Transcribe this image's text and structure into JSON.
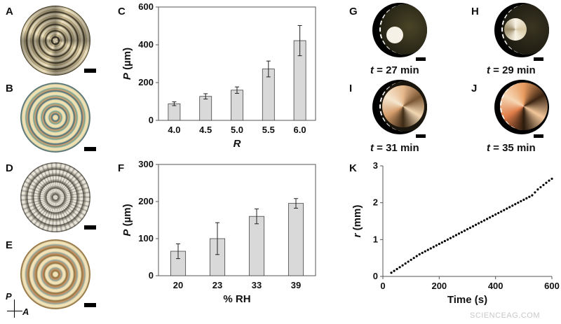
{
  "panel_letters": {
    "A": "A",
    "B": "B",
    "C": "C",
    "D": "D",
    "E": "E",
    "F": "F",
    "G": "G",
    "H": "H",
    "I": "I",
    "J": "J",
    "K": "K"
  },
  "polarizer": {
    "p": "P",
    "a": "A"
  },
  "micrographs": {
    "captions": [
      {
        "var": "t",
        "rest": " = 27 min"
      },
      {
        "var": "t",
        "rest": " = 29 min"
      },
      {
        "var": "t",
        "rest": " = 31 min"
      },
      {
        "var": "t",
        "rest": " = 35 min"
      }
    ]
  },
  "watermark": "SCIENCEAG.COM",
  "chart_data": [
    {
      "type": "bar",
      "panel": "C",
      "xlabel": "R",
      "ylabel": "P (µm)",
      "ylabel_var": "P",
      "ylabel_unit": " (µm)",
      "categories": [
        "4.0",
        "4.5",
        "5.0",
        "5.5",
        "6.0"
      ],
      "values": [
        88,
        127,
        160,
        272,
        422
      ],
      "errors": [
        10,
        14,
        17,
        42,
        80
      ],
      "ylim": [
        0,
        600
      ],
      "yticks": [
        "0",
        "200",
        "400",
        "600"
      ],
      "bar_color": "#d9d9d9",
      "grid": false
    },
    {
      "type": "bar",
      "panel": "F",
      "xlabel": "% RH",
      "ylabel": "P (µm)",
      "ylabel_var": "P",
      "ylabel_unit": " (µm)",
      "categories": [
        "20",
        "23",
        "33",
        "39"
      ],
      "values": [
        66,
        100,
        160,
        195
      ],
      "errors": [
        20,
        43,
        20,
        13
      ],
      "ylim": [
        0,
        300
      ],
      "yticks": [
        "0",
        "100",
        "200",
        "300"
      ],
      "bar_color": "#d9d9d9",
      "grid": false
    },
    {
      "type": "scatter",
      "panel": "K",
      "xlabel": "Time (s)",
      "ylabel": "r (mm)",
      "ylabel_var": "r",
      "ylabel_unit": " (mm)",
      "xlim": [
        0,
        600
      ],
      "ylim": [
        0,
        3
      ],
      "xticks": [
        "0",
        "200",
        "400",
        "600"
      ],
      "yticks": [
        "0",
        "1",
        "2",
        "3"
      ],
      "x": [
        30,
        40,
        50,
        60,
        70,
        80,
        90,
        100,
        110,
        120,
        130,
        140,
        150,
        160,
        170,
        180,
        190,
        200,
        210,
        220,
        230,
        240,
        250,
        260,
        270,
        280,
        290,
        300,
        310,
        320,
        330,
        340,
        350,
        360,
        370,
        380,
        390,
        400,
        410,
        420,
        430,
        440,
        450,
        460,
        470,
        480,
        490,
        500,
        510,
        520,
        530,
        540,
        550,
        560,
        570,
        580,
        590,
        600
      ],
      "y": [
        0.1,
        0.15,
        0.2,
        0.25,
        0.3,
        0.35,
        0.4,
        0.45,
        0.5,
        0.55,
        0.6,
        0.64,
        0.68,
        0.72,
        0.76,
        0.8,
        0.84,
        0.88,
        0.92,
        0.96,
        1.0,
        1.04,
        1.08,
        1.12,
        1.16,
        1.2,
        1.24,
        1.28,
        1.32,
        1.36,
        1.4,
        1.44,
        1.48,
        1.52,
        1.56,
        1.6,
        1.64,
        1.68,
        1.72,
        1.76,
        1.8,
        1.84,
        1.88,
        1.92,
        1.96,
        2.0,
        2.04,
        2.08,
        2.12,
        2.16,
        2.2,
        2.28,
        2.36,
        2.42,
        2.48,
        2.54,
        2.6,
        2.65
      ]
    }
  ]
}
